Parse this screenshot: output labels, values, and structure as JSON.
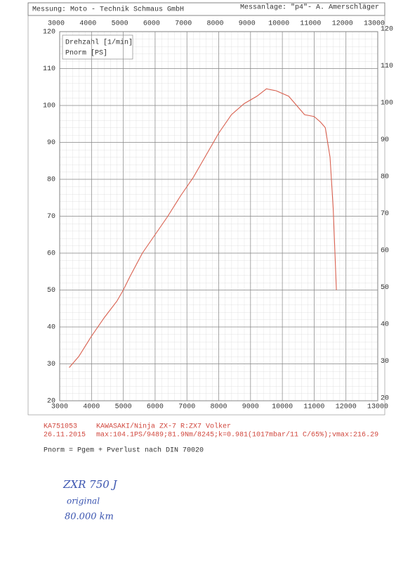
{
  "header": {
    "left": "Messung: Moto - Technik Schmaus GmbH",
    "right": "Messanlage: \"p4\"- A. Amerschläger"
  },
  "chart_data": {
    "type": "line",
    "x_label": "Drehzahl [1/min]",
    "y_label": "Pnorm [PS]",
    "x": [
      3300,
      3600,
      4000,
      4400,
      4800,
      5000,
      5200,
      5600,
      6000,
      6400,
      6800,
      7200,
      7600,
      8000,
      8400,
      8800,
      9200,
      9500,
      9800,
      10200,
      10400,
      10700,
      11000,
      11200,
      11350,
      11500,
      11600,
      11700
    ],
    "values": [
      29,
      32,
      37.5,
      42.5,
      47,
      50,
      53.5,
      60,
      65,
      70,
      75.5,
      80.5,
      86.5,
      92.5,
      97.5,
      100.5,
      102.5,
      104.5,
      104,
      102.5,
      100.5,
      97.5,
      97,
      95.5,
      94,
      86,
      72,
      50
    ],
    "color": "#d9604f",
    "xlim": [
      3000,
      13000
    ],
    "xticks": [
      3000,
      4000,
      5000,
      6000,
      7000,
      8000,
      9000,
      10000,
      11000,
      12000,
      13000
    ],
    "ylim": [
      20,
      120
    ],
    "yticks": [
      20,
      30,
      40,
      50,
      60,
      70,
      80,
      90,
      100,
      110,
      120
    ],
    "grid": true
  },
  "footer": {
    "id": "KA751053",
    "vehicle": "KAWASAKI/Ninja  ZX-7 R:ZX7 Volker",
    "date": "26.11.2015",
    "summary": "max:104.1PS/9489;81.9Nm/8245;k=0.981(1017mbar/11 C/65%);vmax:216.29",
    "formula": "Pnorm = Pgem + Pverlust nach DIN 70020"
  },
  "notes": [
    "ZXR 750 J",
    "original",
    "80.000 km"
  ]
}
